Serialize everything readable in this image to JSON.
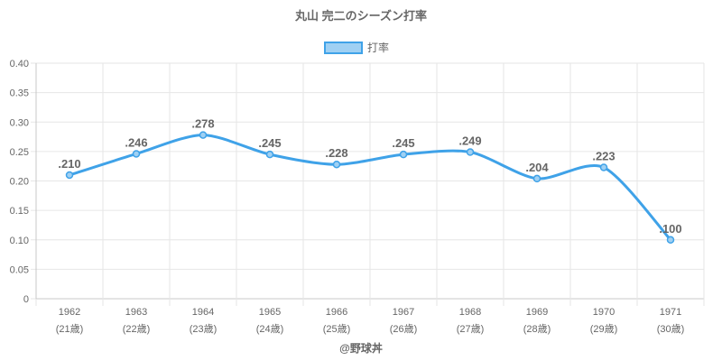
{
  "chart_data": {
    "type": "line",
    "title": "丸山 完二のシーズン打率",
    "legend": {
      "label": "打率",
      "placement": "top-center"
    },
    "categories": [
      "1962",
      "1963",
      "1964",
      "1965",
      "1966",
      "1967",
      "1968",
      "1969",
      "1970",
      "1971"
    ],
    "category_sublabels": [
      "(21歳)",
      "(22歳)",
      "(23歳)",
      "(24歳)",
      "(25歳)",
      "(26歳)",
      "(27歳)",
      "(28歳)",
      "(29歳)",
      "(30歳)"
    ],
    "series": [
      {
        "name": "打率",
        "values": [
          0.21,
          0.246,
          0.278,
          0.245,
          0.228,
          0.245,
          0.249,
          0.204,
          0.223,
          0.1
        ],
        "data_labels": [
          ".210",
          ".246",
          ".278",
          ".245",
          ".228",
          ".245",
          ".249",
          ".204",
          ".223",
          ".100"
        ]
      }
    ],
    "ylim": [
      0,
      0.4
    ],
    "y_ticks": [
      "0",
      "0.05",
      "0.10",
      "0.15",
      "0.20",
      "0.25",
      "0.30",
      "0.35",
      "0.40"
    ],
    "grid": true,
    "line_color": "#3fa2e8",
    "fill_color": "#9fd0f3"
  },
  "footer": {
    "credit": "@野球丼"
  }
}
